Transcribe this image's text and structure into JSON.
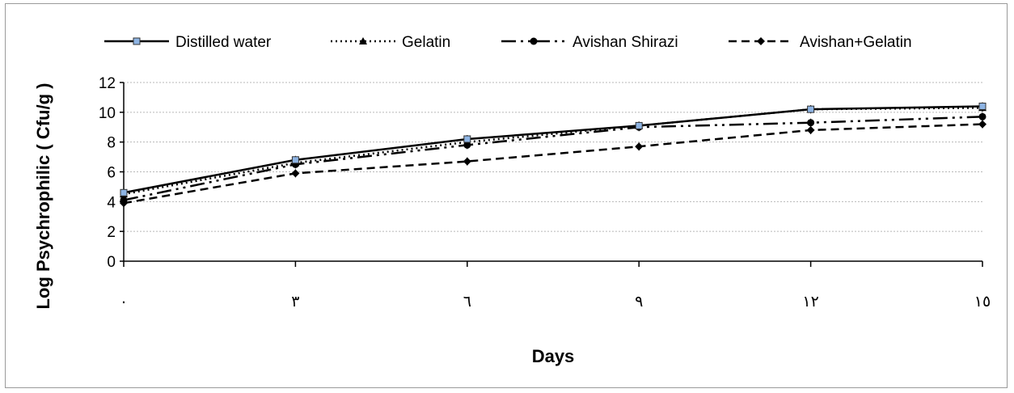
{
  "chart_data": {
    "type": "line",
    "title": "",
    "xlabel": "Days",
    "ylabel": "Log  Psychrophilic ( Cfu/g )",
    "categories": [
      "٠",
      "٣",
      "٦",
      "٩",
      "١٢",
      "١٥"
    ],
    "ylim": [
      0,
      12
    ],
    "yticks": [
      0,
      2,
      4,
      6,
      8,
      10,
      12
    ],
    "grid": true,
    "legend_position": "top",
    "series": [
      {
        "name": "Distilled water",
        "values": [
          4.6,
          6.8,
          8.2,
          9.1,
          10.2,
          10.4
        ],
        "color": "#000000",
        "line_style": "solid",
        "marker": "square",
        "marker_color": "#8eb4e3"
      },
      {
        "name": "Gelatin",
        "values": [
          4.5,
          6.6,
          8.0,
          9.1,
          10.2,
          10.3
        ],
        "color": "#000000",
        "line_style": "dotted",
        "marker": "triangle",
        "marker_color": "#000000"
      },
      {
        "name": "Avishan Shirazi",
        "values": [
          4.1,
          6.5,
          7.8,
          9.0,
          9.3,
          9.7
        ],
        "color": "#000000",
        "line_style": "dash-dot-dot",
        "marker": "circle",
        "marker_color": "#000000"
      },
      {
        "name": "Avishan+Gelatin",
        "values": [
          3.9,
          5.9,
          6.7,
          7.7,
          8.8,
          9.2
        ],
        "color": "#000000",
        "line_style": "dashed",
        "marker": "diamond",
        "marker_color": "#000000"
      }
    ]
  }
}
